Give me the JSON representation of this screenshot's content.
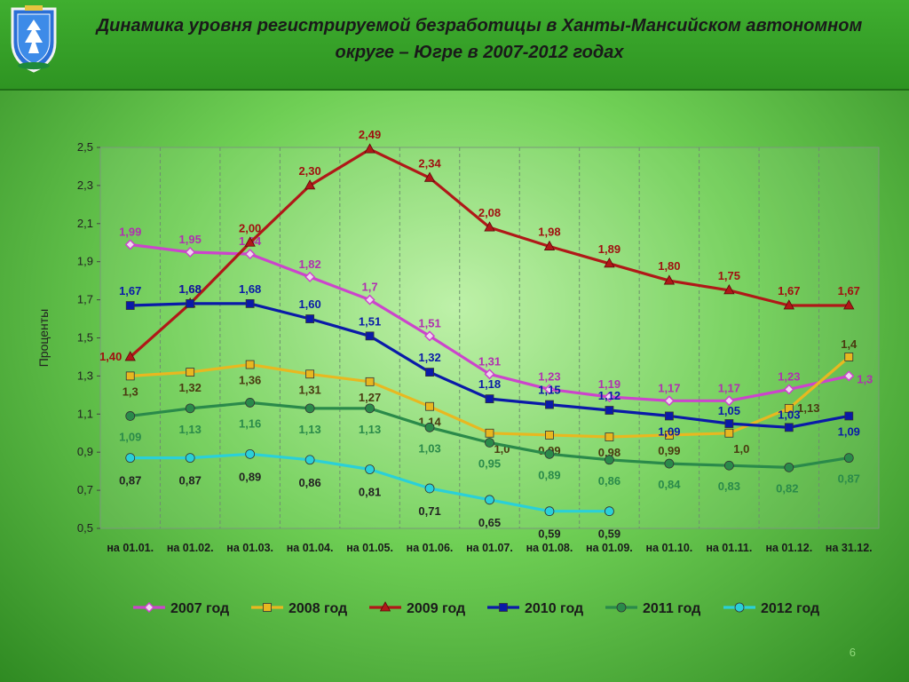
{
  "slide": {
    "title": "Динамика уровня регистрируемой безработицы в Ханты-Мансийском автономном округе – Югре в 2007-2012 годах",
    "page_number": "6",
    "emblem_icon": "khmao-coat-of-arms-icon",
    "colors": {
      "header_green": "#3fae2f",
      "title_text": "#1a1a1a"
    }
  },
  "chart_data": {
    "type": "line",
    "title": "",
    "xlabel": "",
    "ylabel": "Проценты",
    "ylim": [
      0.5,
      2.5
    ],
    "yticks": [
      "0,5",
      "0,7",
      "0,9",
      "1,1",
      "1,3",
      "1,5",
      "1,7",
      "1,9",
      "2,1",
      "2,3",
      "2,5"
    ],
    "grid": "vertical",
    "legend_position": "bottom",
    "categories": [
      "на 01.01.",
      "на 01.02.",
      "на 01.03.",
      "на 01.04.",
      "на 01.05.",
      "на 01.06.",
      "на 01.07.",
      "на 01.08.",
      "на 01.09.",
      "на 01.10.",
      "на 01.11.",
      "на 01.12.",
      "на 31.12."
    ],
    "series": [
      {
        "name": "2007 год",
        "color": "#cc44cc",
        "marker": "diamond",
        "values": [
          1.99,
          1.95,
          1.94,
          1.82,
          1.7,
          1.51,
          1.31,
          1.23,
          1.19,
          1.17,
          1.17,
          1.23,
          1.3
        ],
        "labels": [
          "1,99",
          "1,95",
          "1,94",
          "1,82",
          "1,7",
          "1,51",
          "1,31",
          "1,23",
          "1,19",
          "1,17",
          "1,17",
          "1,23",
          "1,3"
        ]
      },
      {
        "name": "2008 год",
        "color": "#e8b820",
        "marker": "square",
        "values": [
          1.3,
          1.32,
          1.36,
          1.31,
          1.27,
          1.14,
          1.0,
          0.99,
          0.98,
          0.99,
          1.0,
          1.13,
          1.4
        ],
        "labels": [
          "1,3",
          "1,32",
          "1,36",
          "1,31",
          "1,27",
          "1,14",
          "1,0",
          "0,99",
          "0,98",
          "0,99",
          "1,0",
          "1,13",
          "1,4"
        ]
      },
      {
        "name": "2009 год",
        "color": "#b01818",
        "marker": "triangle",
        "values": [
          1.4,
          1.68,
          2.0,
          2.3,
          2.49,
          2.34,
          2.08,
          1.98,
          1.89,
          1.8,
          1.75,
          1.67,
          1.67
        ],
        "labels": [
          "1,40",
          "1,68",
          "2,00",
          "2,30",
          "2,49",
          "2,34",
          "2,08",
          "1,98",
          "1,89",
          "1,80",
          "1,75",
          "1,67",
          "1,67"
        ]
      },
      {
        "name": "2010 год",
        "color": "#0a1aa8",
        "marker": "square",
        "values": [
          1.67,
          1.68,
          1.68,
          1.6,
          1.51,
          1.32,
          1.18,
          1.15,
          1.12,
          1.09,
          1.05,
          1.03,
          1.09
        ],
        "labels": [
          "1,67",
          "1,68",
          "1,68",
          "1,60",
          "1,51",
          "1,32",
          "1,18",
          "1,15",
          "1,12",
          "1,09",
          "1,05",
          "1,03",
          "1,09"
        ]
      },
      {
        "name": "2011 год",
        "color": "#2a8a4a",
        "marker": "circle",
        "values": [
          1.09,
          1.13,
          1.16,
          1.13,
          1.13,
          1.03,
          0.95,
          0.89,
          0.86,
          0.84,
          0.83,
          0.82,
          0.87
        ],
        "labels": [
          "1,09",
          "1,13",
          "1,16",
          "1,13",
          "1,13",
          "1,03",
          "0,95",
          "0,89",
          "0,86",
          "0,84",
          "0,83",
          "0,82",
          "0,87"
        ]
      },
      {
        "name": "2012 год",
        "color": "#2ad0d8",
        "marker": "circle",
        "values": [
          0.87,
          0.87,
          0.89,
          0.86,
          0.81,
          0.71,
          0.65,
          0.59,
          0.59,
          null,
          null,
          null,
          null
        ],
        "labels": [
          "0,87",
          "0,87",
          "0,89",
          "0,86",
          "0,81",
          "0,71",
          "0,65",
          "0,59",
          "0,59",
          null,
          null,
          null,
          null
        ]
      }
    ]
  }
}
